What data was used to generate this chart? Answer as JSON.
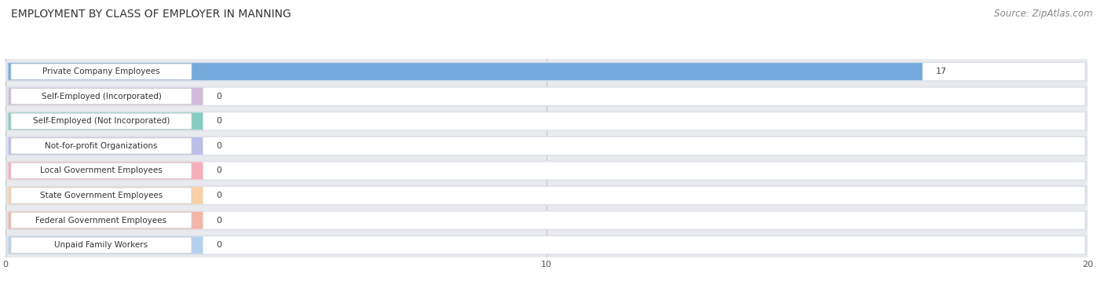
{
  "title": "EMPLOYMENT BY CLASS OF EMPLOYER IN MANNING",
  "source": "Source: ZipAtlas.com",
  "categories": [
    "Private Company Employees",
    "Self-Employed (Incorporated)",
    "Self-Employed (Not Incorporated)",
    "Not-for-profit Organizations",
    "Local Government Employees",
    "State Government Employees",
    "Federal Government Employees",
    "Unpaid Family Workers"
  ],
  "values": [
    17,
    0,
    0,
    0,
    0,
    0,
    0,
    0
  ],
  "bar_colors": [
    "#5b9bd5",
    "#c9aed6",
    "#72c3b8",
    "#b3b3e6",
    "#f4a0b0",
    "#f9c99a",
    "#f0a898",
    "#a8c8e8"
  ],
  "xlim": [
    0,
    20
  ],
  "xticks": [
    0,
    10,
    20
  ],
  "title_fontsize": 10,
  "source_fontsize": 8.5,
  "label_fontsize": 7.5,
  "value_fontsize": 8,
  "bar_height": 0.72,
  "row_bg_color": "#f0f2f5",
  "bar_bg_color": "#e4e8ef"
}
